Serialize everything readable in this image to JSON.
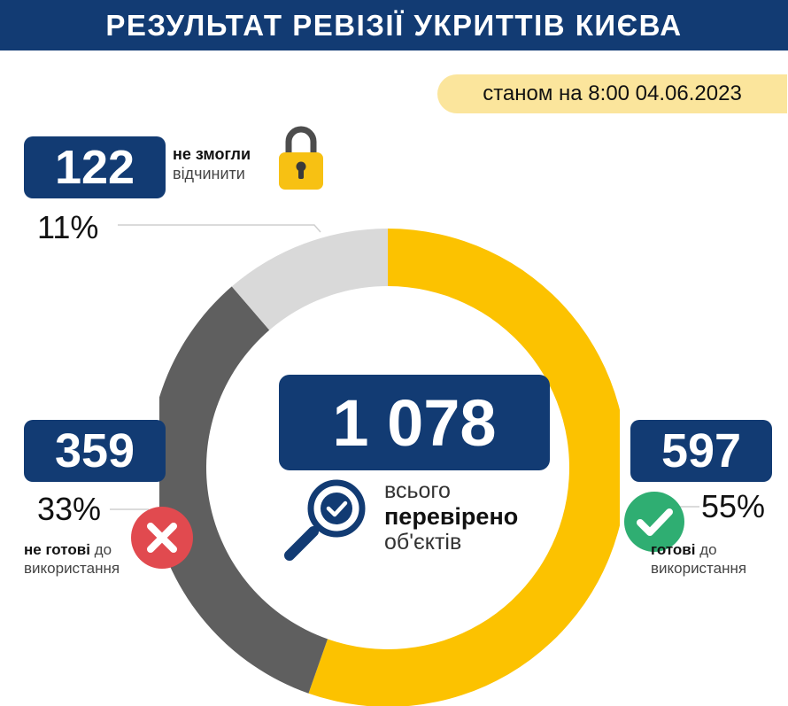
{
  "header": {
    "title": "РЕЗУЛЬТАТ РЕВІЗІЇ УКРИТТІВ КИЄВА"
  },
  "date": {
    "text": "станом на 8:00 04.06.2023"
  },
  "center": {
    "total": "1 078",
    "line1": "всього",
    "line2": "перевірено",
    "line3": "об'єктів",
    "icon": "magnifier-check-icon"
  },
  "closed": {
    "count": "122",
    "label_bold": "не змогли",
    "label_rest": "відчинити",
    "pct": "11%",
    "icon": "padlock-icon"
  },
  "not_ready": {
    "count": "359",
    "label_bold": "не готові",
    "label_rest": " до",
    "label_line2": "використання",
    "pct": "33%",
    "icon": "red-cross-icon"
  },
  "ready": {
    "count": "597",
    "label_bold": "готові",
    "label_rest": " до",
    "label_line2": "використання",
    "pct": "55%",
    "icon": "green-check-icon"
  },
  "colors": {
    "navy": "#123b73",
    "yellow": "#fcc200",
    "dark_gray": "#5f5f5f",
    "light_gray": "#d9d9d9",
    "red": "#e14a4f",
    "green": "#2fae72",
    "pill": "#fbe59c"
  },
  "chart_data": {
    "type": "pie",
    "variant": "donut",
    "total": 1078,
    "categories": [
      "готові до використання",
      "не готові до використання",
      "не змогли відчинити"
    ],
    "values": [
      597,
      359,
      122
    ],
    "percents": [
      55,
      33,
      11
    ],
    "colors": [
      "#fcc200",
      "#5f5f5f",
      "#d9d9d9"
    ]
  }
}
